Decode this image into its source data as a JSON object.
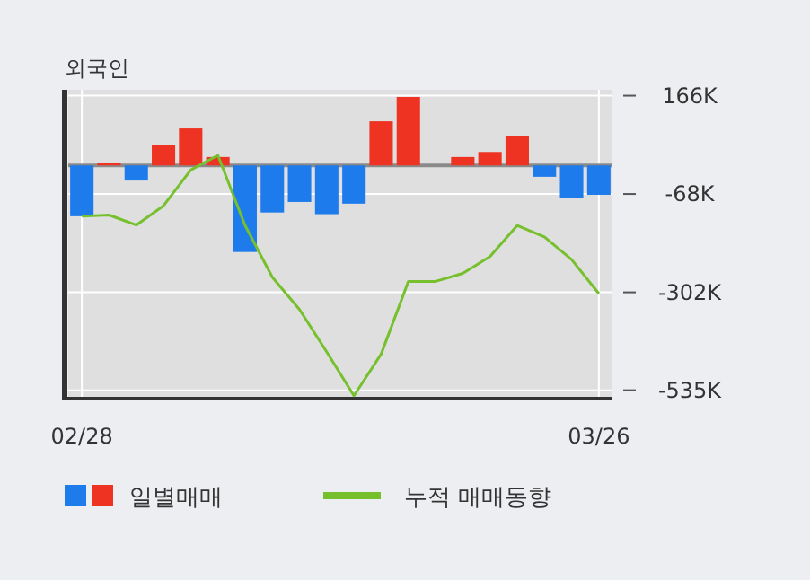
{
  "chart_data": {
    "type": "bar",
    "title": "외국인",
    "categories": [
      "02/28",
      null,
      null,
      null,
      null,
      null,
      null,
      null,
      null,
      null,
      null,
      null,
      null,
      null,
      null,
      null,
      null,
      null,
      null,
      "03/26"
    ],
    "series": [
      {
        "name": "일별매매",
        "colors": [
          "#1e7bec",
          "#ee3322",
          "#1e7bec",
          "#ee3322",
          "#ee3322",
          "#ee3322",
          "#1e7bec",
          "#1e7bec",
          "#1e7bec",
          "#1e7bec",
          "#1e7bec",
          "#ee3322",
          "#ee3322",
          "#ee3322",
          "#ee3322",
          "#ee3322",
          "#ee3322",
          "#1e7bec",
          "#1e7bec",
          "#1e7bec"
        ],
        "values": [
          -121,
          6,
          -36,
          49,
          88,
          20,
          -206,
          -112,
          -87,
          -116,
          -91,
          105,
          163,
          0,
          20,
          32,
          71,
          -27,
          -78,
          -70
        ]
      },
      {
        "name": "누적 매매동향",
        "type": "line",
        "color": "#77c02d",
        "values": [
          -121,
          -118,
          -142,
          -96,
          -11,
          24,
          -143,
          -266,
          -343,
          -444,
          -548,
          -449,
          -276,
          -276,
          -257,
          -217,
          -143,
          -170,
          -224,
          -305
        ]
      }
    ],
    "ylim": [
      -555,
      180
    ],
    "yticks": [
      {
        "value": 166,
        "label": "166K"
      },
      {
        "value": -68,
        "label": "-68K"
      },
      {
        "value": -302,
        "label": "-302K"
      },
      {
        "value": -535,
        "label": "-535K"
      }
    ],
    "ref_lines": [
      {
        "axis": "y",
        "value": 0,
        "color": "#8a8a8a"
      }
    ],
    "grid": true,
    "legend": "bottom"
  }
}
